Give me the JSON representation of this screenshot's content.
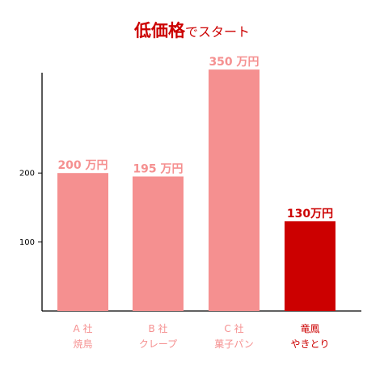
{
  "title": {
    "main": "低価格",
    "sub": "でスタート"
  },
  "colors": {
    "bar": "#f59090",
    "highlight": "#cc0000",
    "axis": "#000000"
  },
  "chart_data": {
    "type": "bar",
    "title": "低価格でスタート",
    "xlabel": "",
    "ylabel": "",
    "ylim": [
      0,
      350
    ],
    "yticks": [
      100,
      200
    ],
    "grid": false,
    "categories": [
      {
        "line1": "A 社",
        "line2": "焼鳥"
      },
      {
        "line1": "B 社",
        "line2": "クレープ"
      },
      {
        "line1": "C 社",
        "line2": "菓子パン"
      },
      {
        "line1": "竜鳳",
        "line2": "やきとり"
      }
    ],
    "values": [
      200,
      195,
      350,
      130
    ],
    "data_labels": [
      "200 万円",
      "195 万円",
      "350 万円",
      "130万円"
    ],
    "highlight_index": 3
  }
}
